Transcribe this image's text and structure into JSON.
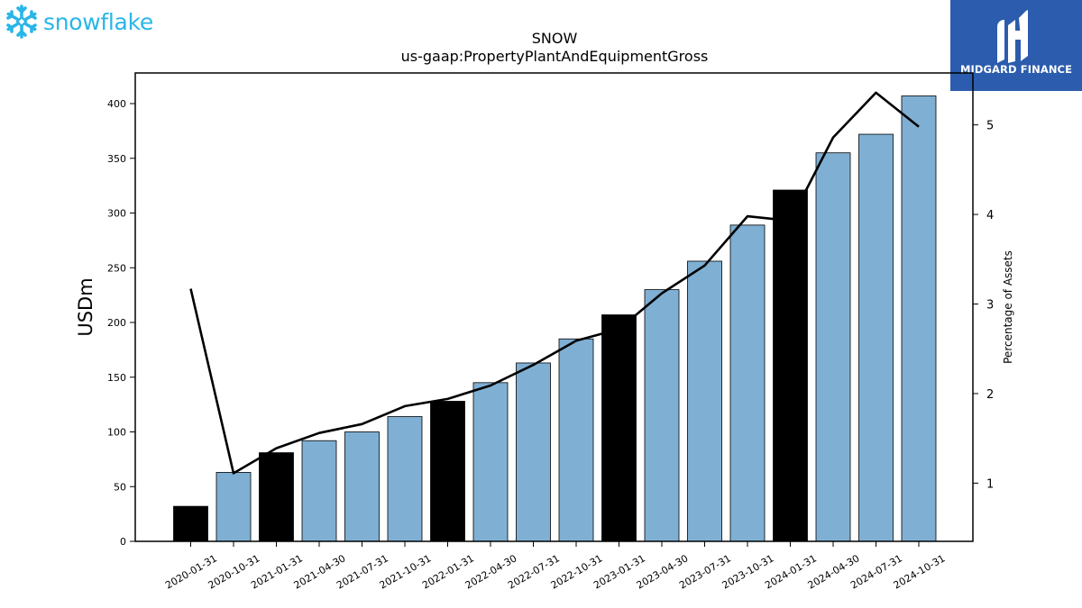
{
  "logos": {
    "left": {
      "text": "snowflake",
      "icon": "snowflake-icon",
      "color": "#29b5e8"
    },
    "right": {
      "text": "MIDGARD FINANCE",
      "icon": "midgard-mark-icon",
      "background": "#2b5cad"
    }
  },
  "chart_data": {
    "type": "bar",
    "title": "SNOW",
    "subtitle": "us-gaap:PropertyPlantAndEquipmentGross",
    "ylabel": "USDm",
    "y2label": "Percentage of Assets",
    "ylim": [
      0,
      428
    ],
    "y2lim": [
      0.35,
      5.58
    ],
    "yticks": [
      0,
      50,
      100,
      150,
      200,
      250,
      300,
      350,
      400
    ],
    "y2ticks": [
      1,
      2,
      3,
      4,
      5
    ],
    "categories": [
      "2020-01-31",
      "2020-10-31",
      "2021-01-31",
      "2021-04-30",
      "2021-07-31",
      "2021-10-31",
      "2022-01-31",
      "2022-04-30",
      "2022-07-31",
      "2022-10-31",
      "2023-01-31",
      "2023-04-30",
      "2023-07-31",
      "2023-10-31",
      "2024-01-31",
      "2024-04-30",
      "2024-07-31",
      "2024-10-31"
    ],
    "series": [
      {
        "type": "bar",
        "values": [
          32,
          63,
          81,
          92,
          100,
          114,
          128,
          145,
          163,
          185,
          207,
          230,
          256,
          289,
          321,
          355,
          372,
          407
        ],
        "annual": [
          true,
          false,
          true,
          false,
          false,
          false,
          true,
          false,
          false,
          false,
          true,
          false,
          false,
          false,
          true,
          false,
          false,
          false
        ]
      },
      {
        "type": "line",
        "axis": "right",
        "values": [
          3.17,
          1.11,
          1.39,
          1.56,
          1.66,
          1.86,
          1.94,
          2.09,
          2.32,
          2.59,
          2.72,
          3.12,
          3.43,
          3.98,
          3.93,
          4.86,
          5.36,
          4.98
        ]
      }
    ],
    "colors": {
      "annual_bar": "#000000",
      "quarter_bar": "#7fb0d4",
      "line": "#000000"
    },
    "grid": false,
    "legend": "none"
  }
}
